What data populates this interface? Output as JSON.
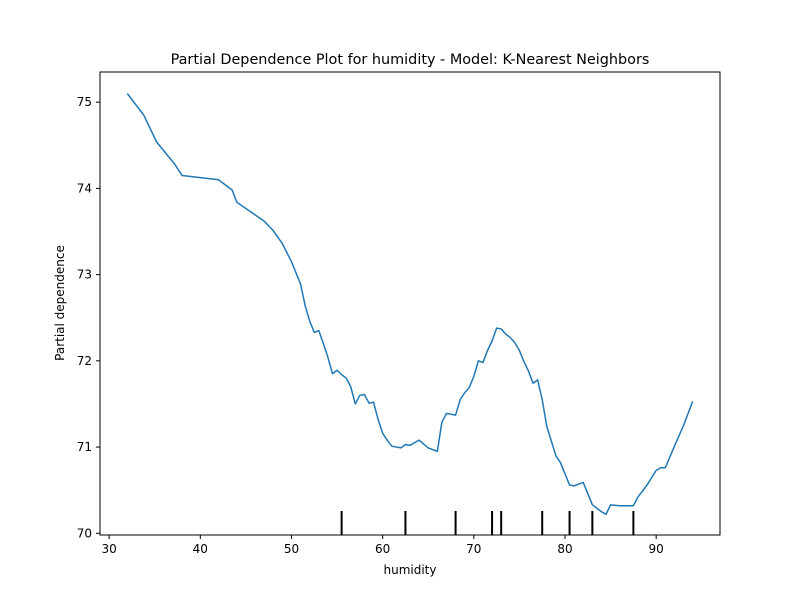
{
  "chart_data": {
    "type": "line",
    "title": "Partial Dependence Plot for humidity - Model: K-Nearest Neighbors",
    "xlabel": "humidity",
    "ylabel": "Partial dependence",
    "xlim": [
      29,
      97
    ],
    "ylim": [
      69.98,
      75.35
    ],
    "xticks": [
      30,
      40,
      50,
      60,
      70,
      80,
      90
    ],
    "yticks": [
      70,
      71,
      72,
      73,
      74,
      75
    ],
    "grid": false,
    "line_color": "#1f77b4",
    "series": [
      {
        "x": [
          32,
          33.8,
          35.2,
          37.2,
          38.0,
          42.0,
          43.5,
          44.0,
          47.0,
          48.0,
          49.0,
          50.0,
          51.0,
          51.5,
          52.0,
          52.5,
          53.0,
          53.5,
          54.0,
          54.5,
          55.0,
          55.5,
          56.0,
          56.5,
          57.0,
          57.5,
          58.0,
          58.5,
          59.0,
          59.5,
          60.0,
          60.5,
          61.0,
          62.0,
          62.5,
          63.0,
          64.0,
          65.0,
          66.0,
          66.5,
          67.0,
          68.0,
          68.5,
          69.0,
          69.5,
          70.0,
          70.5,
          71.0,
          71.5,
          72.0,
          72.5,
          73.0,
          73.5,
          74.0,
          74.5,
          75.0,
          75.5,
          76.0,
          76.5,
          77.0,
          77.5,
          78.0,
          79.0,
          79.5,
          80.0,
          80.5,
          81.0,
          82.0,
          83.0,
          84.0,
          84.5,
          85.0,
          86.0,
          87.0,
          87.5,
          88.0,
          89.0,
          90.0,
          90.5,
          91.0,
          92.0,
          93.0,
          94.0
        ],
        "y": [
          75.1,
          74.85,
          74.54,
          74.28,
          74.15,
          74.1,
          73.98,
          73.84,
          73.62,
          73.51,
          73.36,
          73.15,
          72.89,
          72.64,
          72.46,
          72.33,
          72.35,
          72.2,
          72.04,
          71.85,
          71.89,
          71.84,
          71.8,
          71.7,
          71.5,
          71.6,
          71.61,
          71.51,
          71.52,
          71.32,
          71.16,
          71.08,
          71.01,
          70.99,
          71.03,
          71.02,
          71.08,
          70.99,
          70.95,
          71.29,
          71.39,
          71.37,
          71.55,
          71.63,
          71.69,
          71.82,
          72.0,
          71.98,
          72.12,
          72.23,
          72.38,
          72.37,
          72.31,
          72.27,
          72.21,
          72.12,
          71.99,
          71.88,
          71.74,
          71.78,
          71.55,
          71.24,
          70.9,
          70.82,
          70.69,
          70.56,
          70.55,
          70.59,
          70.33,
          70.25,
          70.22,
          70.33,
          70.32,
          70.32,
          70.32,
          70.42,
          70.56,
          70.73,
          70.76,
          70.76,
          71.01,
          71.25,
          71.53
        ]
      }
    ],
    "rug": [
      55.5,
      62.5,
      68.0,
      72.0,
      73.0,
      77.5,
      80.5,
      83.0,
      87.5
    ]
  }
}
